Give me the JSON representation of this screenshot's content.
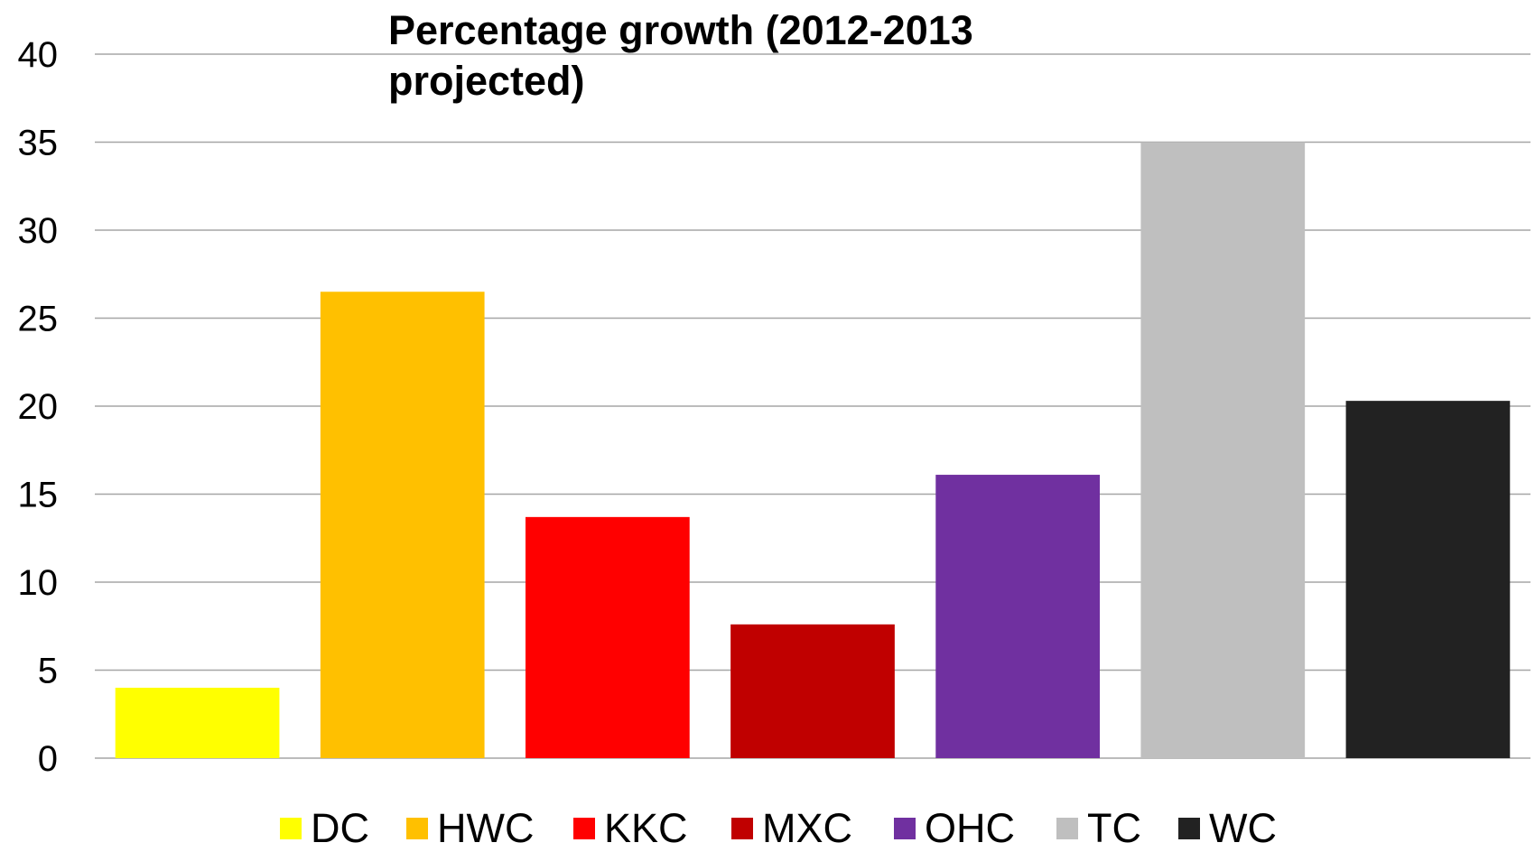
{
  "chart_data": {
    "type": "bar",
    "title": "Percentage growth (2012-2013 projected)",
    "xlabel": "",
    "ylabel": "",
    "categories": [
      "DC",
      "HWC",
      "KKC",
      "MXC",
      "OHC",
      "TC",
      "WC"
    ],
    "values": [
      4.0,
      26.5,
      13.7,
      7.6,
      16.1,
      35.0,
      20.3
    ],
    "colors": [
      "#FFFF00",
      "#FFC000",
      "#FF0000",
      "#C00000",
      "#7030A0",
      "#BFBFBF",
      "#222222"
    ],
    "ylim": [
      0,
      40
    ],
    "yticks": [
      "0",
      "5",
      "10",
      "15",
      "20",
      "25",
      "30",
      "35",
      "40"
    ],
    "grid": true,
    "legend_position": "bottom",
    "gridline_color": "#A6A6A6"
  }
}
